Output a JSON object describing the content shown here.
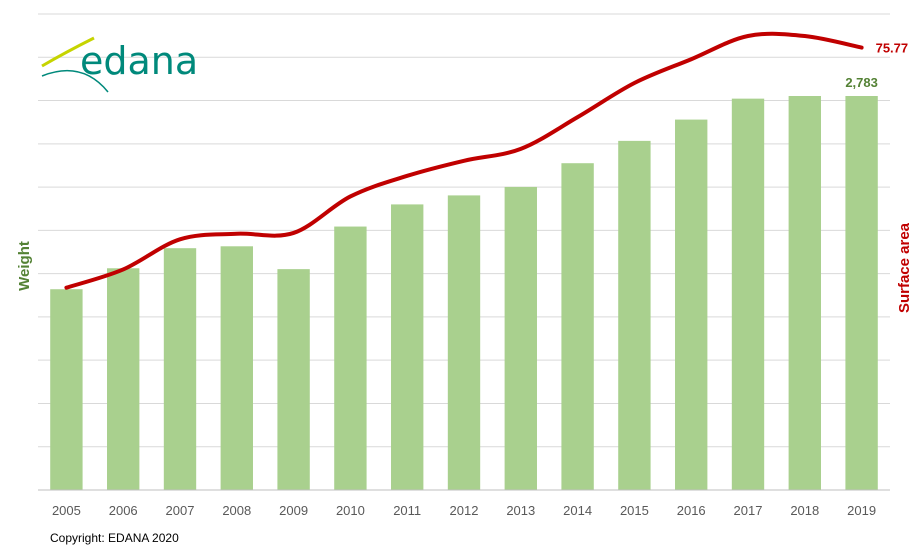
{
  "logo": {
    "text": "edana",
    "color": "#00897b",
    "accent": "#c6d400"
  },
  "copyright": "Copyright: EDANA 2020",
  "chart_data": {
    "type": "bar",
    "categories": [
      "2005",
      "2006",
      "2007",
      "2008",
      "2009",
      "2010",
      "2011",
      "2012",
      "2013",
      "2014",
      "2015",
      "2016",
      "2017",
      "2018",
      "2019"
    ],
    "series": [
      {
        "type": "bar",
        "axis": "left",
        "color": "#a9d08e",
        "values": [
          1160,
          1281,
          1397,
          1408,
          1276,
          1522,
          1650,
          1702,
          1751,
          1888,
          2017,
          2140,
          2261,
          2302,
          2783
        ],
        "data_labels": {
          "14": "2,783"
        }
      },
      {
        "type": "line",
        "axis": "right",
        "color": "#c00000",
        "values": [
          45.5,
          47.8,
          51.6,
          52.3,
          52.4,
          57.0,
          59.6,
          61.5,
          63.0,
          67.0,
          71.3,
          74.3,
          78.5,
          78.3,
          75.77
        ],
        "data_labels": {
          "14": "75.77"
        }
      }
    ],
    "ylabel_left": "Weight",
    "ylabel_left_color": "#548235",
    "ylabel_right": "Surface area",
    "ylabel_right_color": "#c00000",
    "ylim_left": [
      0,
      2750
    ],
    "ylim_right": [
      20,
      80
    ],
    "grid": true,
    "y_tick_labels_shown": false
  }
}
